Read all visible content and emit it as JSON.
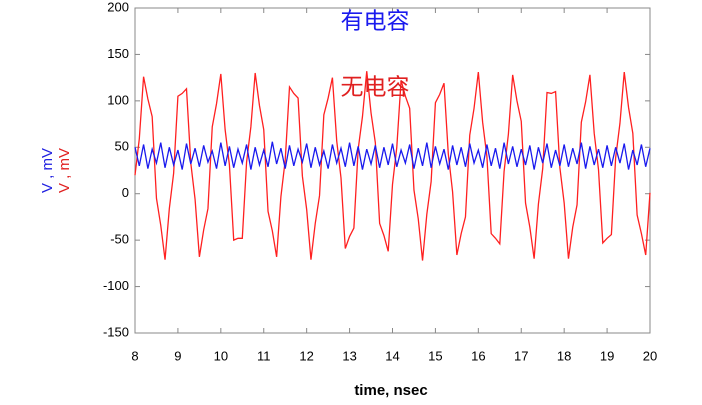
{
  "chart_data": {
    "type": "line",
    "xlabel": "time, nsec",
    "ylabels": [
      {
        "text": "V , mV",
        "color": "#2020e0"
      },
      {
        "text": "V , mV",
        "color": "#e02020"
      }
    ],
    "annotations": [
      {
        "text": "有电容",
        "color": "#1a1aee"
      },
      {
        "text": "无电容",
        "color": "#e02020"
      }
    ],
    "xlim": [
      8,
      20
    ],
    "xticks": [
      8,
      9,
      10,
      11,
      12,
      13,
      14,
      15,
      16,
      17,
      18,
      19,
      20
    ],
    "ylim": [
      -150,
      200
    ],
    "yticks": [
      -150,
      -100,
      -50,
      0,
      50,
      100,
      150,
      200
    ],
    "x": [
      8.0,
      8.1,
      8.2,
      8.3,
      8.4,
      8.5,
      8.6,
      8.7,
      8.8,
      8.9,
      9.0,
      9.1,
      9.2,
      9.3,
      9.4,
      9.5,
      9.6,
      9.7,
      9.8,
      9.9,
      10.0,
      10.1,
      10.2,
      10.3,
      10.4,
      10.5,
      10.6,
      10.7,
      10.8,
      10.9,
      11.0,
      11.1,
      11.2,
      11.3,
      11.4,
      11.5,
      11.6,
      11.7,
      11.8,
      11.9,
      12.0,
      12.1,
      12.2,
      12.3,
      12.4,
      12.5,
      12.6,
      12.7,
      12.8,
      12.9,
      13.0,
      13.1,
      13.2,
      13.3,
      13.4,
      13.5,
      13.6,
      13.7,
      13.8,
      13.9,
      14.0,
      14.1,
      14.2,
      14.3,
      14.4,
      14.5,
      14.6,
      14.7,
      14.8,
      14.9,
      15.0,
      15.1,
      15.2,
      15.3,
      15.4,
      15.5,
      15.6,
      15.7,
      15.8,
      15.9,
      16.0,
      16.1,
      16.2,
      16.3,
      16.4,
      16.5,
      16.6,
      16.7,
      16.8,
      16.9,
      17.0,
      17.1,
      17.2,
      17.3,
      17.4,
      17.5,
      17.6,
      17.7,
      17.8,
      17.9,
      18.0,
      18.1,
      18.2,
      18.3,
      18.4,
      18.5,
      18.6,
      18.7,
      18.8,
      18.9,
      19.0,
      19.1,
      19.2,
      19.3,
      19.4,
      19.5,
      19.6,
      19.7,
      19.8,
      19.9,
      20.0
    ],
    "series": [
      {
        "color": "#ff2020",
        "values": [
          20,
          59,
          126,
          102,
          83,
          -5,
          -34,
          -71,
          -16,
          22,
          105,
          108,
          113,
          33,
          -6,
          -68,
          -39,
          -16,
          72,
          97,
          129,
          69,
          31,
          -50,
          -48,
          -48,
          34,
          72,
          130,
          95,
          69,
          -19,
          -40,
          -68,
          -3,
          36,
          115,
          108,
          103,
          19,
          -17,
          -71,
          -32,
          -2,
          85,
          103,
          125,
          57,
          17,
          -59,
          -46,
          -37,
          48,
          83,
          132,
          87,
          55,
          -32,
          -45,
          -62,
          10,
          50,
          122,
          105,
          92,
          4,
          -27,
          -72,
          -22,
          13,
          98,
          107,
          119,
          43,
          2,
          -66,
          -43,
          -25,
          63,
          92,
          131,
          77,
          40,
          -43,
          -48,
          -54,
          24,
          64,
          128,
          100,
          78,
          -10,
          -36,
          -70,
          -11,
          27,
          109,
          108,
          110,
          28,
          -10,
          -70,
          -36,
          -12,
          77,
          99,
          128,
          65,
          26,
          -53,
          -48,
          -44,
          39,
          76,
          131,
          93,
          65,
          -23,
          -43,
          -66,
          1
        ]
      },
      {
        "color": "#1a1aee",
        "values": [
          50,
          30,
          53,
          27,
          48,
          33,
          55,
          28,
          50,
          31,
          47,
          26,
          54,
          32,
          49,
          29,
          52,
          34,
          46,
          27,
          55,
          30,
          51,
          28,
          48,
          33,
          53,
          26,
          50,
          31,
          47,
          29,
          56,
          32,
          49,
          27,
          52,
          30,
          48,
          34,
          54,
          28,
          50,
          31,
          46,
          27,
          53,
          33,
          49,
          29,
          55,
          30,
          51,
          26,
          48,
          32,
          52,
          28,
          50,
          31,
          54,
          29,
          47,
          33,
          53,
          27,
          49,
          30,
          55,
          28,
          51,
          32,
          48,
          26,
          52,
          31,
          50,
          29,
          54,
          33,
          47,
          28,
          53,
          30,
          49,
          27,
          55,
          32,
          51,
          29,
          48,
          31,
          52,
          26,
          50,
          33,
          54,
          28,
          47,
          30,
          53,
          29,
          49,
          32,
          55,
          27,
          51,
          31,
          48,
          28,
          52,
          30,
          50,
          33,
          54,
          26,
          47,
          31,
          53,
          29,
          49
        ]
      }
    ]
  }
}
